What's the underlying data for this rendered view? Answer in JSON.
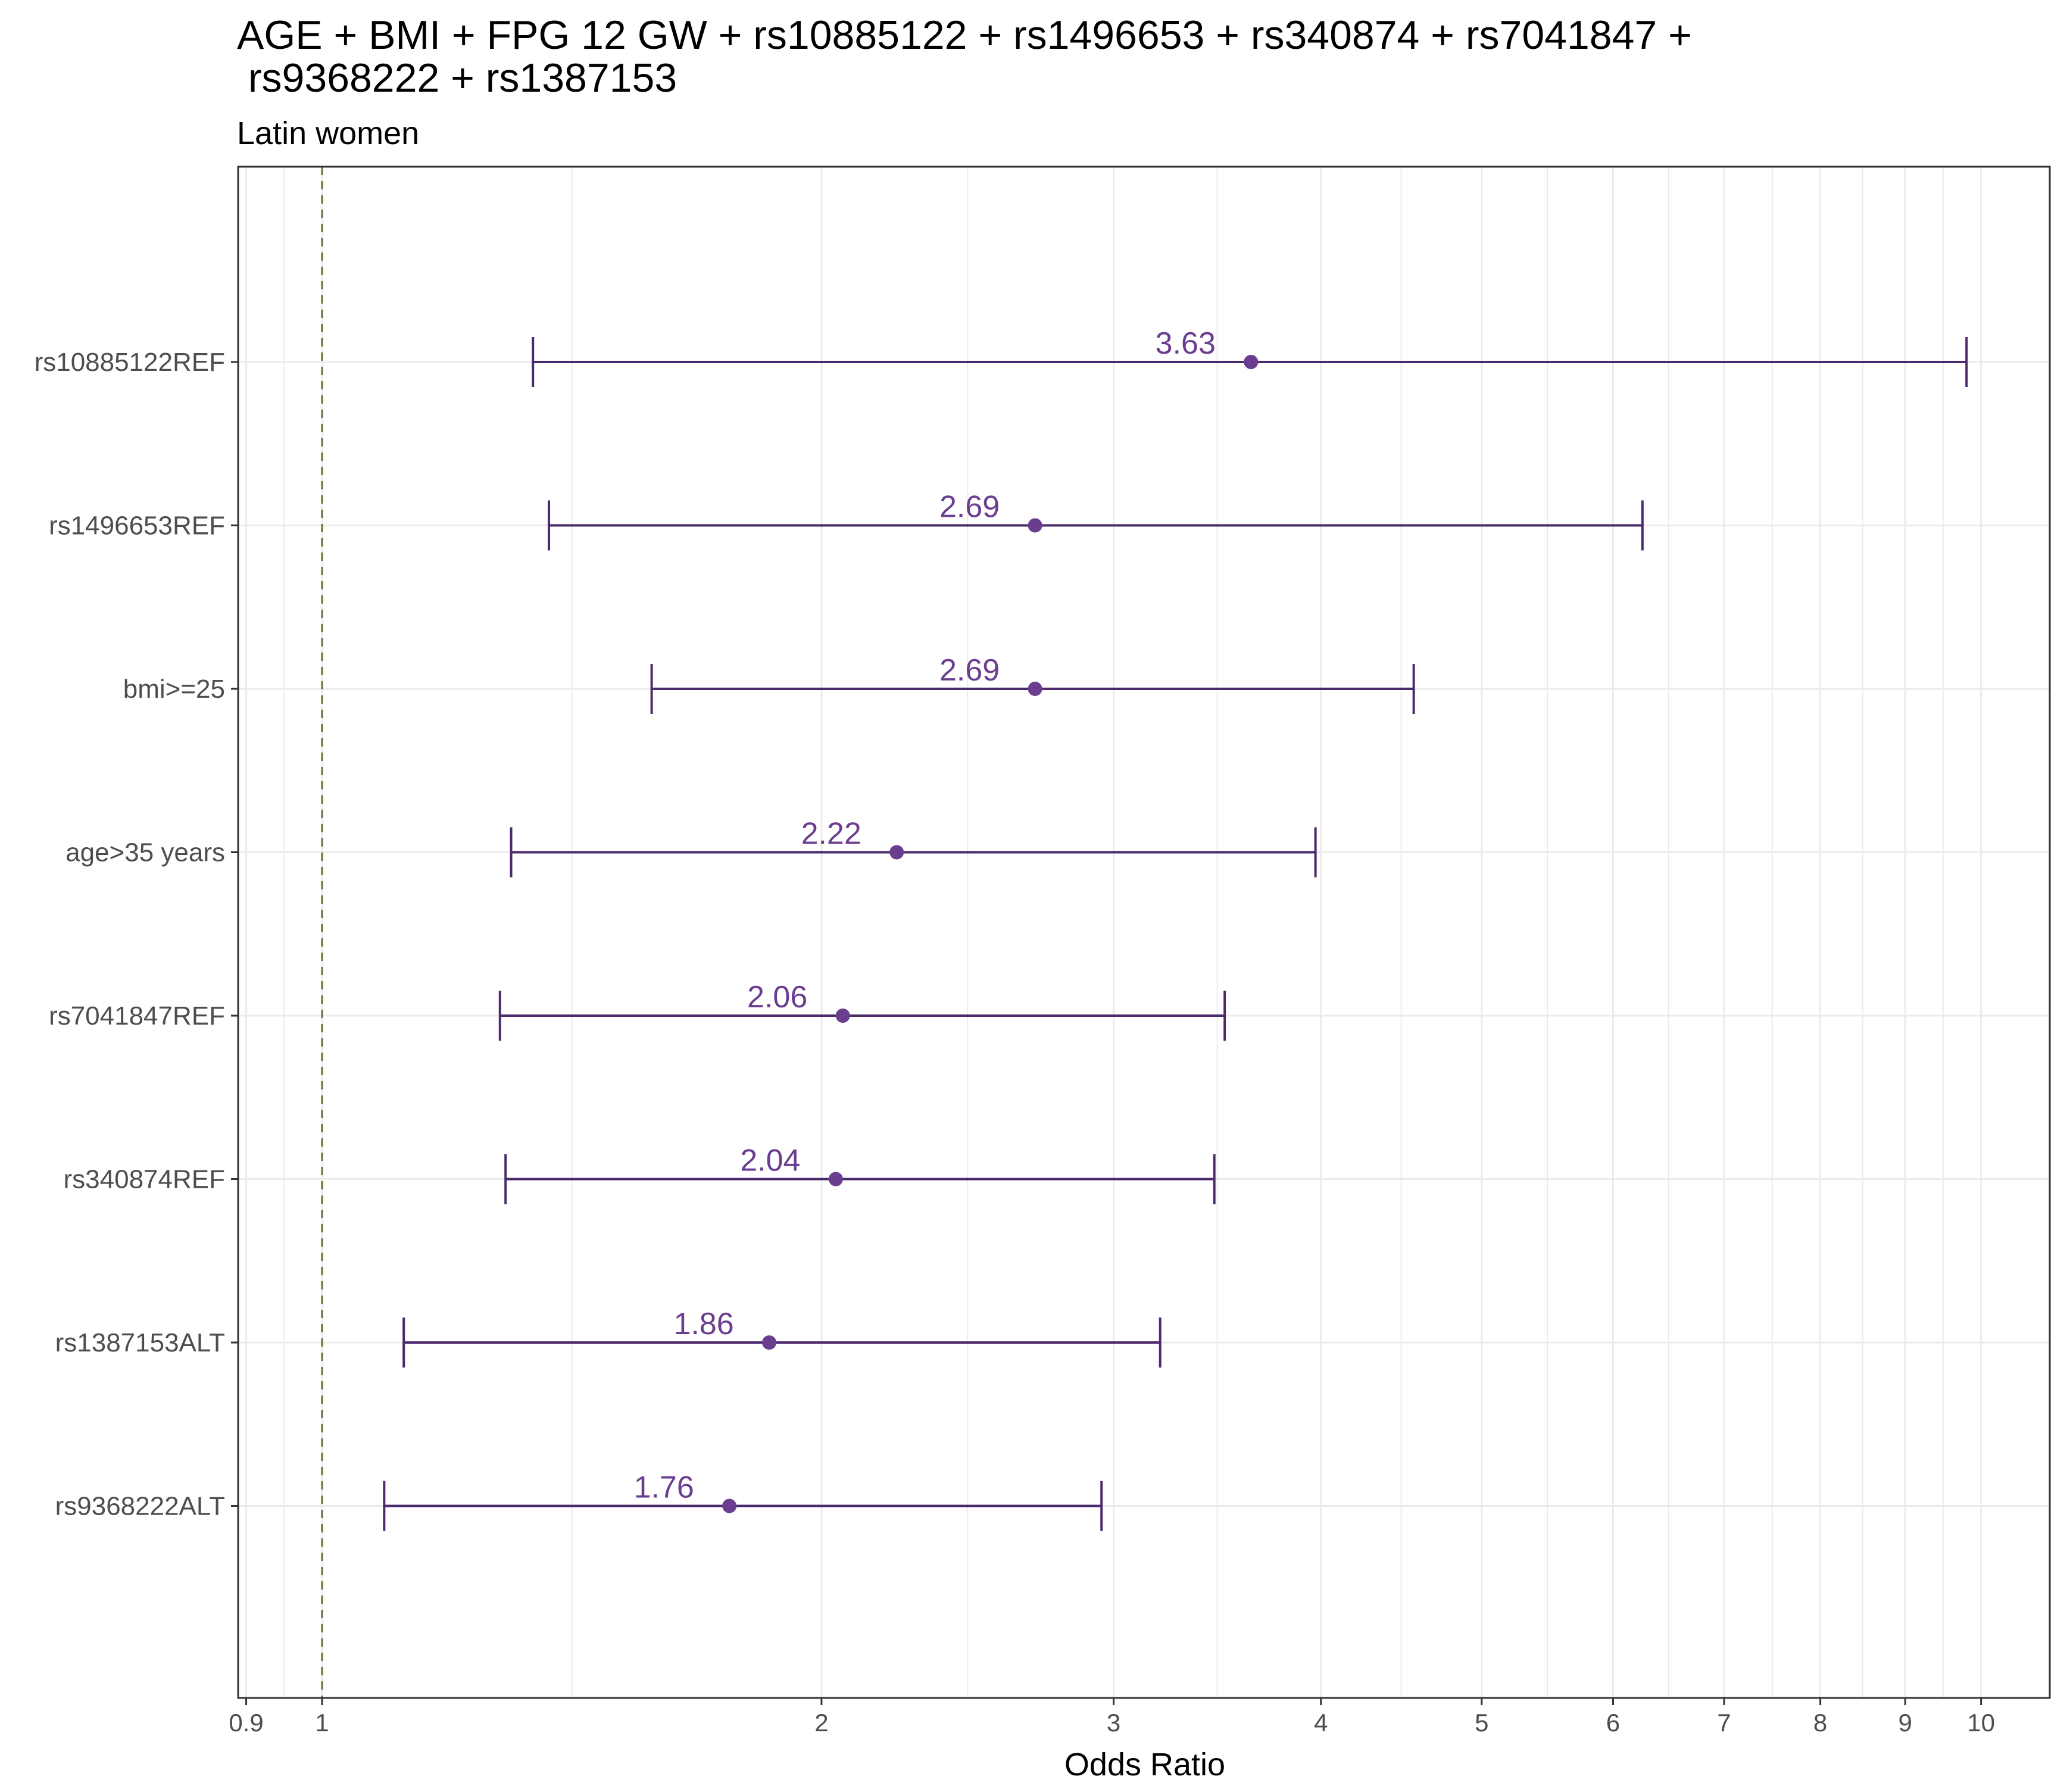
{
  "chart_data": {
    "type": "forest",
    "title_lines": [
      "AGE + BMI + FPG 12 GW + rs10885122 + rs1496653 + rs340874 + rs7041847 +",
      " rs9368222 + rs1387153"
    ],
    "subtitle": "Latin women",
    "xlabel": "Odds Ratio",
    "x_scale": "log",
    "xlim": [
      0.89,
      11.0
    ],
    "x_ticks": [
      0.9,
      1,
      2,
      3,
      4,
      5,
      6,
      7,
      8,
      9,
      10
    ],
    "x_tick_labels": [
      "0.9",
      "1",
      "2",
      "3",
      "4",
      "5",
      "6",
      "7",
      "8",
      "9",
      "10"
    ],
    "reference_line": 1,
    "grid": true,
    "colors": {
      "point": "#6a3d8f",
      "line": "#4b2a6b",
      "reference": "#6b6b2a",
      "grid": "#ebebeb"
    },
    "rows": [
      {
        "label": "rs10885122REF",
        "or": 3.63,
        "lower": 1.34,
        "upper": 9.8,
        "label_text": "3.63"
      },
      {
        "label": "rs1496653REF",
        "or": 2.69,
        "lower": 1.37,
        "upper": 6.25,
        "label_text": "2.69"
      },
      {
        "label": "bmi>=25",
        "or": 2.69,
        "lower": 1.58,
        "upper": 4.55,
        "label_text": "2.69"
      },
      {
        "label": "age>35 years",
        "or": 2.22,
        "lower": 1.3,
        "upper": 3.97,
        "label_text": "2.22"
      },
      {
        "label": "rs7041847REF",
        "or": 2.06,
        "lower": 1.28,
        "upper": 3.5,
        "label_text": "2.06"
      },
      {
        "label": "rs340874REF",
        "or": 2.04,
        "lower": 1.29,
        "upper": 3.45,
        "label_text": "2.04"
      },
      {
        "label": "rs1387153ALT",
        "or": 1.86,
        "lower": 1.12,
        "upper": 3.2,
        "label_text": "1.86"
      },
      {
        "label": "rs9368222ALT",
        "or": 1.76,
        "lower": 1.09,
        "upper": 2.95,
        "label_text": "1.76"
      }
    ]
  }
}
